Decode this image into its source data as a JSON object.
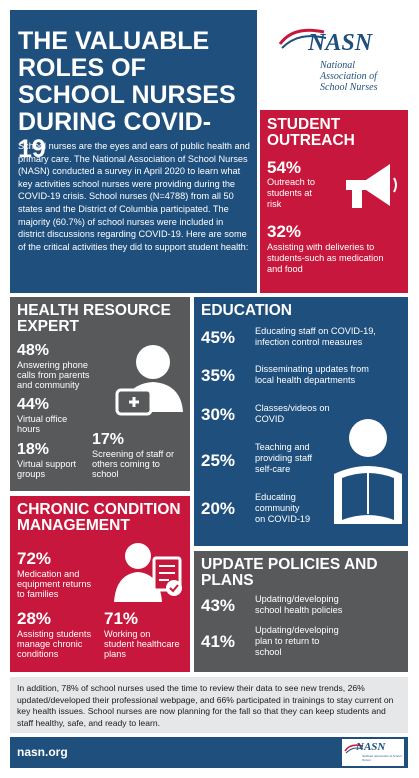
{
  "title": "THE VALUABLE ROLES OF SCHOOL NURSES DURING COVID-19",
  "intro": "School nurses are the eyes and ears of public health and primary care. The National Association of School Nurses (NASN) conducted a survey in April 2020 to learn what key activities school nurses were providing during the COVID-19 crisis. School nurses (N=4788) from all 50 states and the District of Columbia participated. The majority (60.7%) of school nurses were included in district discussions regarding COVID-19. Here are some of the critical activities they did to support student health:",
  "logo": {
    "mark": "NASN",
    "line1": "National",
    "line2": "Association of",
    "line3": "School Nurses"
  },
  "outreach": {
    "heading1": "STUDENT",
    "heading2": "OUTREACH",
    "items": [
      {
        "pct": "54%",
        "text1": "Outreach to",
        "text2": "students at",
        "text3": "risk"
      },
      {
        "pct": "32%",
        "text1": "Assisting with deliveries to",
        "text2": "students-such as medication",
        "text3": "and food"
      }
    ]
  },
  "health": {
    "heading1": "HEALTH RESOURCE",
    "heading2": "EXPERT",
    "items": [
      {
        "pct": "48%",
        "text1": "Answering phone",
        "text2": "calls from parents",
        "text3": "and community"
      },
      {
        "pct": "44%",
        "text1": "Virtual office",
        "text2": "hours"
      },
      {
        "pct": "18%",
        "text1": "Virtual support",
        "text2": "groups"
      },
      {
        "pct": "17%",
        "text1": "Screening of staff or",
        "text2": "others coming to",
        "text3": "school"
      }
    ]
  },
  "education": {
    "heading": "EDUCATION",
    "items": [
      {
        "pct": "45%",
        "text1": "Educating staff on COVID-19,",
        "text2": "infection control measures"
      },
      {
        "pct": "35%",
        "text1": "Disseminating updates from",
        "text2": "local health departments"
      },
      {
        "pct": "30%",
        "text1": "Classes/videos on",
        "text2": "COVID"
      },
      {
        "pct": "25%",
        "text1": "Teaching and",
        "text2": "providing staff",
        "text3": "self-care"
      },
      {
        "pct": "20%",
        "text1": "Educating",
        "text2": "community",
        "text3": "on COVID-19"
      }
    ]
  },
  "chronic": {
    "heading1": "CHRONIC CONDITION",
    "heading2": "MANAGEMENT",
    "items": [
      {
        "pct": "72%",
        "text1": "Medication and",
        "text2": "equipment returns",
        "text3": "to families"
      },
      {
        "pct": "28%",
        "text1": "Assisting students",
        "text2": "manage chronic",
        "text3": "conditions"
      },
      {
        "pct": "71%",
        "text1": "Working on",
        "text2": "student healthcare",
        "text3": "plans"
      }
    ]
  },
  "policies": {
    "heading1": "UPDATE POLICIES AND",
    "heading2": "PLANS",
    "items": [
      {
        "pct": "43%",
        "text1": "Updating/developing",
        "text2": "school health policies"
      },
      {
        "pct": "41%",
        "text1": "Updating/developing",
        "text2": "plan to return to",
        "text3": "school"
      }
    ]
  },
  "footer": {
    "text": "In addition, 78% of school nurses used the time to review their data to see new trends, 26% updated/developed their professional webpage, and 66% participated in trainings to stay current on key health issues. School nurses are now planning for the fall so that they can keep students and staff healthy, safe, and ready to learn.",
    "url": "nasn.org",
    "logo_mark": "NASN",
    "logo_small": "National Association of School Nurses"
  },
  "colors": {
    "blue": "#1f4f7d",
    "red": "#c8173c",
    "grey": "#58595b",
    "light": "#e6e7e8"
  }
}
